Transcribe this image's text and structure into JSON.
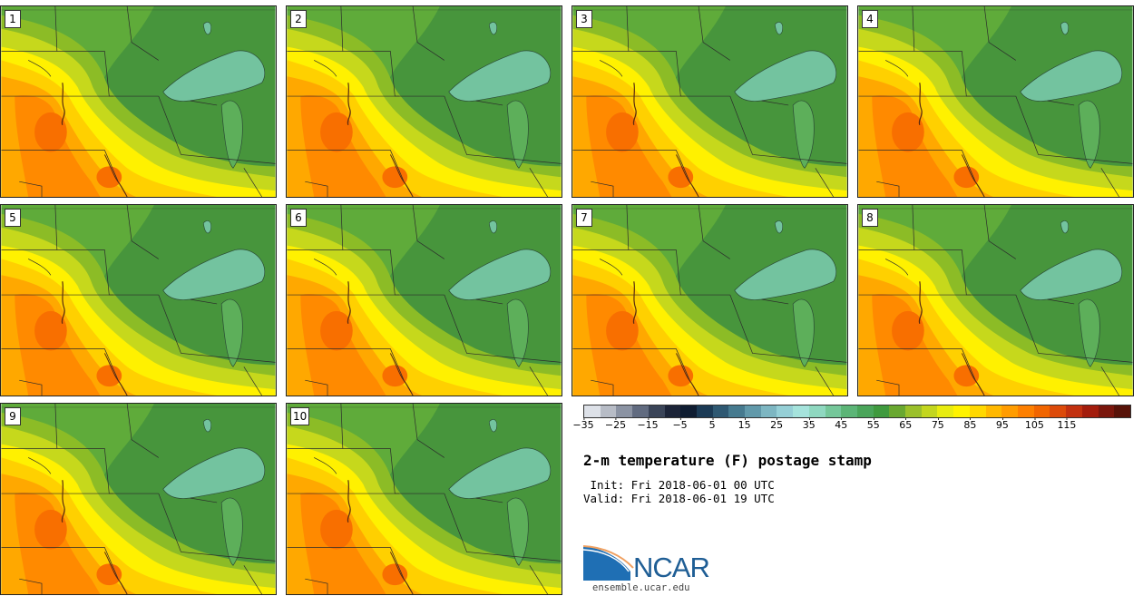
{
  "title": "2-m temperature (F) postage stamp",
  "init": " Init: Fri 2018-06-01 00 UTC",
  "valid": "Valid: Fri 2018-06-01 19 UTC",
  "panels": [
    "1",
    "2",
    "3",
    "4",
    "5",
    "6",
    "7",
    "8",
    "9",
    "10"
  ],
  "colorbar": {
    "ticks": [
      "−35",
      "−25",
      "−15",
      "−5",
      "5",
      "15",
      "25",
      "35",
      "45",
      "55",
      "65",
      "75",
      "85",
      "95",
      "105",
      "115"
    ],
    "colors": [
      "#dde1e8",
      "#b7bcc6",
      "#8b93a3",
      "#616b80",
      "#3a4458",
      "#1c2438",
      "#0f1d32",
      "#1b3a55",
      "#2e5872",
      "#467a8f",
      "#6199aa",
      "#7db6c2",
      "#95cfd6",
      "#a5e3dc",
      "#8fd8c0",
      "#75c79a",
      "#5cb577",
      "#4aa55a",
      "#3f9a3e",
      "#69a830",
      "#9bc02a",
      "#c3d61e",
      "#e8ec10",
      "#fff300",
      "#ffd800",
      "#ffb800",
      "#ff9c00",
      "#fd7f00",
      "#f16500",
      "#dc4a0a",
      "#c2300f",
      "#a31c0c",
      "#7a160c",
      "#571208"
    ]
  },
  "logo": {
    "text": "NCAR",
    "url": "ensemble.ucar.edu"
  }
}
